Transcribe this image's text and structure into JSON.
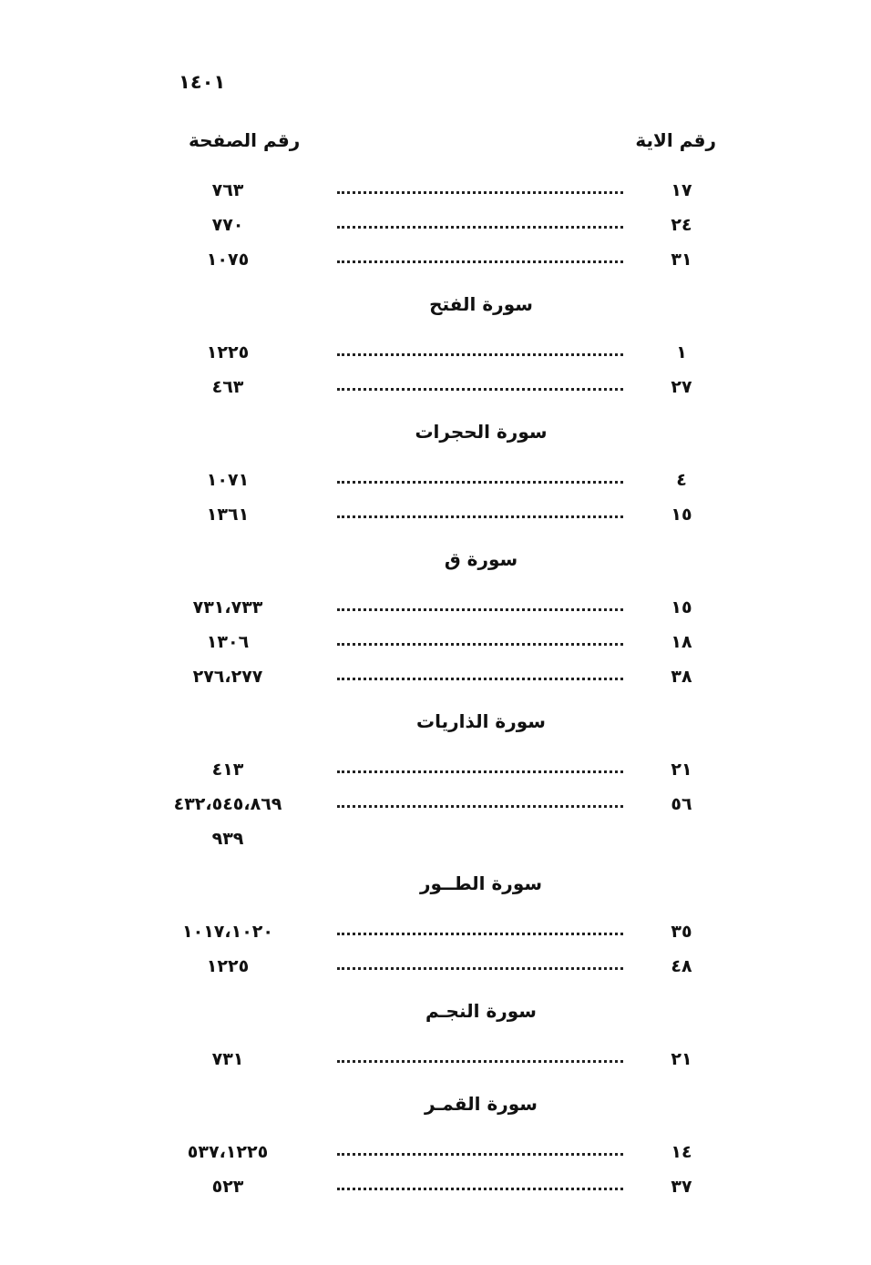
{
  "page_number": "١٤٠١",
  "headers": {
    "verse": "رقم الاية",
    "page": "رقم الصفحة"
  },
  "sections": [
    {
      "title": "",
      "rows": [
        {
          "verse": "١٧",
          "pages": "٧٦٣"
        },
        {
          "verse": "٢٤",
          "pages": "٧٧٠"
        },
        {
          "verse": "٣١",
          "pages": "١٠٧٥"
        }
      ]
    },
    {
      "title": "سورة الفتح",
      "rows": [
        {
          "verse": "١",
          "pages": "١٢٢٥"
        },
        {
          "verse": "٢٧",
          "pages": "٤٦٣"
        }
      ]
    },
    {
      "title": "سورة الحجرات",
      "rows": [
        {
          "verse": "٤",
          "pages": "١٠٧١"
        },
        {
          "verse": "١٥",
          "pages": "١٣٦١"
        }
      ]
    },
    {
      "title": "سورة ق",
      "rows": [
        {
          "verse": "١٥",
          "pages": "٧٣١،٧٣٣"
        },
        {
          "verse": "١٨",
          "pages": "١٣٠٦"
        },
        {
          "verse": "٣٨",
          "pages": "٢٧٦،٢٧٧"
        }
      ]
    },
    {
      "title": "سورة الذاريات",
      "rows": [
        {
          "verse": "٢١",
          "pages": "٤١٣"
        },
        {
          "verse": "٥٦",
          "pages": "٤٣٢،٥٤٥،٨٦٩"
        },
        {
          "verse": "",
          "pages": "٩٣٩",
          "continuation": true
        }
      ]
    },
    {
      "title": "سورة الطــور",
      "rows": [
        {
          "verse": "٣٥",
          "pages": "١٠١٧،١٠٢٠"
        },
        {
          "verse": "٤٨",
          "pages": "١٢٢٥"
        }
      ]
    },
    {
      "title": "سورة النجـم",
      "rows": [
        {
          "verse": "٢١",
          "pages": "٧٣١"
        }
      ]
    },
    {
      "title": "سورة القمـر",
      "rows": [
        {
          "verse": "١٤",
          "pages": "٥٣٧،١٢٢٥"
        },
        {
          "verse": "٣٧",
          "pages": "٥٢٣"
        }
      ]
    }
  ]
}
